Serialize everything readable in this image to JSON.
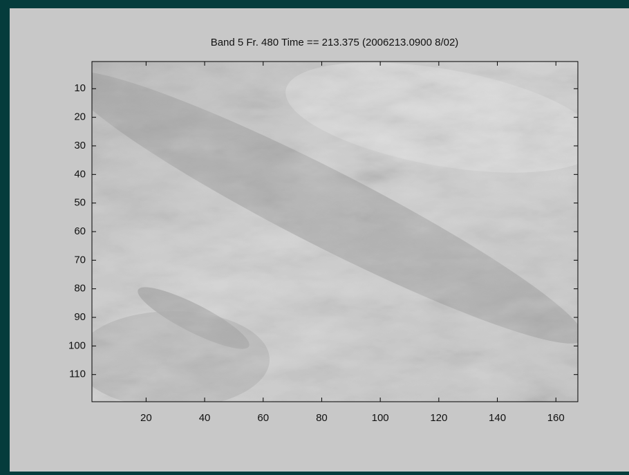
{
  "chart_data": {
    "type": "image",
    "title": "Band 5 Fr. 480 Time ==  213.375 (2006213.0900  8/02)",
    "xlim": [
      1.5,
      167.5
    ],
    "xticks": [
      20,
      40,
      60,
      80,
      100,
      120,
      140,
      160
    ],
    "ylim": [
      0.5,
      119.5
    ],
    "yticks": [
      10,
      20,
      30,
      40,
      50,
      60,
      70,
      80,
      90,
      100,
      110
    ],
    "y_reversed": true,
    "colormap": "gray"
  }
}
